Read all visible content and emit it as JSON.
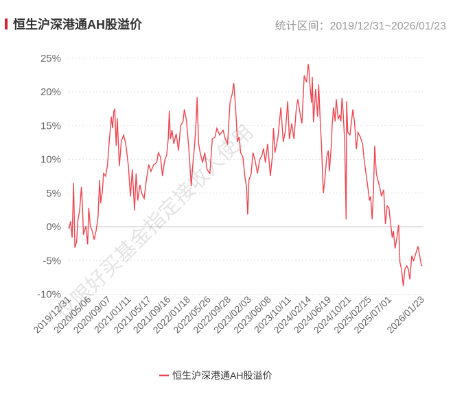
{
  "header": {
    "title": "恒生沪深港通AH股溢价",
    "range_label": "统计区间：2019/12/31~2026/01/23"
  },
  "watermark": "仅限好买基金指定接收人使用",
  "colors": {
    "line": "#f0454f",
    "accent": "#d0252d",
    "grid": "#dddddd",
    "text": "#666666"
  },
  "chart_data": {
    "type": "line",
    "title": "",
    "xlabel": "",
    "ylabel": "",
    "ylim": [
      -10,
      25
    ],
    "yticks": [
      -10,
      -5,
      0,
      5,
      10,
      15,
      20,
      25
    ],
    "ytick_labels": [
      "-10%",
      "-5%",
      "0%",
      "5%",
      "10%",
      "15%",
      "20%",
      "25%"
    ],
    "xlim": [
      "2019-12-31",
      "2026-01-23"
    ],
    "xtick_labels": [
      "2019/12/31",
      "2020/05/06",
      "2020/09/07",
      "2021/01/11",
      "2021/05/17",
      "2021/09/16",
      "2022/01/18",
      "2022/05/26",
      "2022/09/28",
      "2023/02/03",
      "2023/06/08",
      "2023/10/11",
      "2024/02/14",
      "2024/06/19",
      "2024/10/21",
      "2025/02/25",
      "2025/07/01",
      "2026/01/23"
    ],
    "grid": true,
    "legend_position": "bottom",
    "series": [
      {
        "name": "恒生沪深港通AH股溢价",
        "points": [
          [
            "2019-12-31",
            0.0
          ],
          [
            "2020-01-03",
            -0.2
          ],
          [
            "2020-01-12",
            0.8
          ],
          [
            "2020-01-22",
            -1.6
          ],
          [
            "2020-01-31",
            6.5
          ],
          [
            "2020-02-08",
            -3.1
          ],
          [
            "2020-02-19",
            -2.2
          ],
          [
            "2020-02-26",
            0.8
          ],
          [
            "2020-03-09",
            2.4
          ],
          [
            "2020-03-20",
            5.9
          ],
          [
            "2020-03-26",
            3.5
          ],
          [
            "2020-04-02",
            -1.2
          ],
          [
            "2020-04-17",
            0.1
          ],
          [
            "2020-04-28",
            -2.6
          ],
          [
            "2020-05-05",
            2.8
          ],
          [
            "2020-05-15",
            0.1
          ],
          [
            "2020-05-26",
            -0.6
          ],
          [
            "2020-06-08",
            -1.9
          ],
          [
            "2020-06-20",
            -0.6
          ],
          [
            "2020-07-02",
            1.4
          ],
          [
            "2020-07-12",
            6.9
          ],
          [
            "2020-07-19",
            3.5
          ],
          [
            "2020-07-29",
            5.2
          ],
          [
            "2020-08-06",
            7.9
          ],
          [
            "2020-08-19",
            7.5
          ],
          [
            "2020-08-31",
            9.2
          ],
          [
            "2020-09-10",
            12.6
          ],
          [
            "2020-09-24",
            16.3
          ],
          [
            "2020-10-01",
            14.6
          ],
          [
            "2020-10-10",
            17.2
          ],
          [
            "2020-10-15",
            17.4
          ],
          [
            "2020-10-24",
            12.0
          ],
          [
            "2020-10-31",
            16.1
          ],
          [
            "2020-11-13",
            9.0
          ],
          [
            "2020-11-25",
            12.6
          ],
          [
            "2020-12-09",
            13.6
          ],
          [
            "2020-12-23",
            12.3
          ],
          [
            "2021-01-09",
            8.9
          ],
          [
            "2021-01-21",
            4.5
          ],
          [
            "2021-02-02",
            8.5
          ],
          [
            "2021-02-16",
            2.4
          ],
          [
            "2021-02-26",
            7.9
          ],
          [
            "2021-03-08",
            3.9
          ],
          [
            "2021-03-22",
            6.2
          ],
          [
            "2021-04-03",
            4.9
          ],
          [
            "2021-04-17",
            4.2
          ],
          [
            "2021-05-01",
            6.9
          ],
          [
            "2021-05-16",
            9.2
          ],
          [
            "2021-05-30",
            8.2
          ],
          [
            "2021-06-16",
            9.2
          ],
          [
            "2021-07-05",
            9.5
          ],
          [
            "2021-07-15",
            11.0
          ],
          [
            "2021-07-29",
            10.3
          ],
          [
            "2021-08-10",
            7.5
          ],
          [
            "2021-08-24",
            9.9
          ],
          [
            "2021-09-05",
            10.6
          ],
          [
            "2021-09-15",
            13.0
          ],
          [
            "2021-09-22",
            17.2
          ],
          [
            "2021-09-29",
            13.0
          ],
          [
            "2021-10-09",
            14.3
          ],
          [
            "2021-10-20",
            12.3
          ],
          [
            "2021-11-04",
            13.8
          ],
          [
            "2021-11-18",
            11.3
          ],
          [
            "2021-12-02",
            15.0
          ],
          [
            "2021-12-17",
            15.6
          ],
          [
            "2021-12-25",
            17.4
          ],
          [
            "2022-01-07",
            15.8
          ],
          [
            "2022-01-22",
            11.6
          ],
          [
            "2022-01-29",
            9.2
          ],
          [
            "2022-02-06",
            6.0
          ],
          [
            "2022-02-15",
            8.9
          ],
          [
            "2022-03-01",
            12.6
          ],
          [
            "2022-03-10",
            16.1
          ],
          [
            "2022-03-15",
            19.2
          ],
          [
            "2022-03-24",
            12.3
          ],
          [
            "2022-04-03",
            11.0
          ],
          [
            "2022-04-18",
            9.5
          ],
          [
            "2022-05-02",
            11.0
          ],
          [
            "2022-05-16",
            8.5
          ],
          [
            "2022-06-03",
            7.9
          ],
          [
            "2022-06-18",
            13.0
          ],
          [
            "2022-07-05",
            13.3
          ],
          [
            "2022-07-17",
            14.6
          ],
          [
            "2022-08-03",
            13.6
          ],
          [
            "2022-08-25",
            14.3
          ],
          [
            "2022-09-08",
            13.0
          ],
          [
            "2022-09-22",
            12.3
          ],
          [
            "2022-10-07",
            18.4
          ],
          [
            "2022-10-21",
            19.7
          ],
          [
            "2022-10-31",
            21.3
          ],
          [
            "2022-11-11",
            17.7
          ],
          [
            "2022-11-23",
            12.6
          ],
          [
            "2022-12-03",
            13.3
          ],
          [
            "2022-12-13",
            11.0
          ],
          [
            "2022-12-27",
            10.3
          ],
          [
            "2023-01-08",
            7.5
          ],
          [
            "2023-01-19",
            5.9
          ],
          [
            "2023-01-26",
            1.8
          ],
          [
            "2023-02-03",
            6.9
          ],
          [
            "2023-02-17",
            7.9
          ],
          [
            "2023-02-28",
            11.0
          ],
          [
            "2023-03-13",
            9.9
          ],
          [
            "2023-03-28",
            7.9
          ],
          [
            "2023-04-11",
            9.9
          ],
          [
            "2023-04-25",
            10.6
          ],
          [
            "2023-05-05",
            11.6
          ],
          [
            "2023-05-17",
            9.5
          ],
          [
            "2023-05-31",
            12.3
          ],
          [
            "2023-06-17",
            7.5
          ],
          [
            "2023-06-29",
            10.3
          ],
          [
            "2023-07-07",
            14.6
          ],
          [
            "2023-07-16",
            11.0
          ],
          [
            "2023-08-04",
            13.3
          ],
          [
            "2023-08-22",
            17.7
          ],
          [
            "2023-09-06",
            12.6
          ],
          [
            "2023-09-20",
            14.3
          ],
          [
            "2023-10-04",
            18.6
          ],
          [
            "2023-10-14",
            13.0
          ],
          [
            "2023-10-29",
            15.3
          ],
          [
            "2023-11-12",
            13.0
          ],
          [
            "2023-11-26",
            17.4
          ],
          [
            "2023-12-06",
            18.9
          ],
          [
            "2023-12-18",
            17.1
          ],
          [
            "2024-01-01",
            15.3
          ],
          [
            "2024-01-15",
            22.4
          ],
          [
            "2024-01-30",
            21.4
          ],
          [
            "2024-02-09",
            24.1
          ],
          [
            "2024-02-13",
            23.5
          ],
          [
            "2024-02-20",
            21.1
          ],
          [
            "2024-03-01",
            18.4
          ],
          [
            "2024-03-06",
            22.2
          ],
          [
            "2024-03-13",
            15.5
          ],
          [
            "2024-03-27",
            20.4
          ],
          [
            "2024-04-08",
            16.3
          ],
          [
            "2024-04-15",
            21.1
          ],
          [
            "2024-04-25",
            15.3
          ],
          [
            "2024-05-02",
            12.3
          ],
          [
            "2024-05-14",
            5.0
          ],
          [
            "2024-05-23",
            6.9
          ],
          [
            "2024-06-04",
            10.3
          ],
          [
            "2024-06-14",
            11.3
          ],
          [
            "2024-06-21",
            8.2
          ],
          [
            "2024-07-03",
            12.0
          ],
          [
            "2024-07-08",
            15.0
          ],
          [
            "2024-07-17",
            17.7
          ],
          [
            "2024-07-27",
            15.6
          ],
          [
            "2024-08-03",
            18.9
          ],
          [
            "2024-08-15",
            16.0
          ],
          [
            "2024-08-25",
            16.5
          ],
          [
            "2024-09-01",
            15.6
          ],
          [
            "2024-09-08",
            19.1
          ],
          [
            "2024-09-15",
            17.1
          ],
          [
            "2024-09-25",
            12.6
          ],
          [
            "2024-10-04",
            1.1
          ],
          [
            "2024-10-07",
            18.6
          ],
          [
            "2024-10-14",
            14.0
          ],
          [
            "2024-10-28",
            13.6
          ],
          [
            "2024-11-15",
            17.4
          ],
          [
            "2024-11-26",
            15.3
          ],
          [
            "2024-12-07",
            11.5
          ],
          [
            "2024-12-17",
            14.0
          ],
          [
            "2025-01-01",
            13.3
          ],
          [
            "2025-01-15",
            12.3
          ],
          [
            "2025-01-25",
            9.9
          ],
          [
            "2025-02-05",
            7.9
          ],
          [
            "2025-02-17",
            5.9
          ],
          [
            "2025-02-27",
            3.9
          ],
          [
            "2025-03-06",
            4.5
          ],
          [
            "2025-03-16",
            1.1
          ],
          [
            "2025-03-24",
            5.2
          ],
          [
            "2025-04-01",
            12.0
          ],
          [
            "2025-04-11",
            7.9
          ],
          [
            "2025-04-21",
            6.9
          ],
          [
            "2025-05-02",
            5.9
          ],
          [
            "2025-05-14",
            4.5
          ],
          [
            "2025-05-27",
            5.5
          ],
          [
            "2025-06-07",
            0.4
          ],
          [
            "2025-06-18",
            3.1
          ],
          [
            "2025-06-29",
            2.8
          ],
          [
            "2025-07-10",
            0.4
          ],
          [
            "2025-07-20",
            -1.6
          ],
          [
            "2025-07-27",
            -0.6
          ],
          [
            "2025-08-07",
            -3.2
          ],
          [
            "2025-08-18",
            -1.6
          ],
          [
            "2025-08-29",
            0.3
          ],
          [
            "2025-09-06",
            -5.3
          ],
          [
            "2025-09-16",
            -6.3
          ],
          [
            "2025-09-27",
            -8.8
          ],
          [
            "2025-10-07",
            -6.3
          ],
          [
            "2025-10-19",
            -5.8
          ],
          [
            "2025-10-29",
            -6.3
          ],
          [
            "2025-11-07",
            -7.8
          ],
          [
            "2025-11-19",
            -4.3
          ],
          [
            "2025-12-01",
            -5.0
          ],
          [
            "2025-12-14",
            -4.0
          ],
          [
            "2025-12-28",
            -2.9
          ],
          [
            "2026-01-08",
            -4.3
          ],
          [
            "2026-01-18",
            -5.7
          ],
          [
            "2026-01-23",
            -5.8
          ]
        ]
      }
    ]
  }
}
